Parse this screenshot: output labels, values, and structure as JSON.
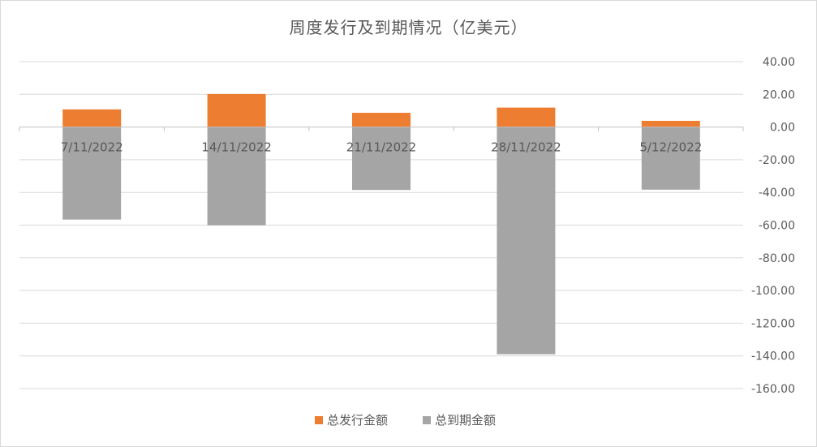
{
  "chart_data": {
    "type": "bar",
    "title": "周度发行及到期情况（亿美元）",
    "categories": [
      "7/11/2022",
      "14/11/2022",
      "21/11/2022",
      "28/11/2022",
      "5/12/2022"
    ],
    "series": [
      {
        "name": "总发行金额",
        "values": [
          10.8,
          20.2,
          8.7,
          11.9,
          3.8
        ],
        "color": "#ED7D31"
      },
      {
        "name": "总到期金额",
        "values": [
          -56.6,
          -60.1,
          -38.5,
          -139.0,
          -38.3
        ],
        "color": "#A5A5A5"
      }
    ],
    "ylim": [
      -160,
      40
    ],
    "yticks": [
      "40.00",
      "20.00",
      "0.00",
      "-20.00",
      "-40.00",
      "-60.00",
      "-80.00",
      "-100.00",
      "-120.00",
      "-140.00",
      "-160.00"
    ],
    "ytick_values": [
      40,
      20,
      0,
      -20,
      -40,
      -60,
      -80,
      -100,
      -120,
      -140,
      -160
    ],
    "y_axis_side": "right",
    "stacked": true,
    "grid": true,
    "legend": "bottom"
  }
}
